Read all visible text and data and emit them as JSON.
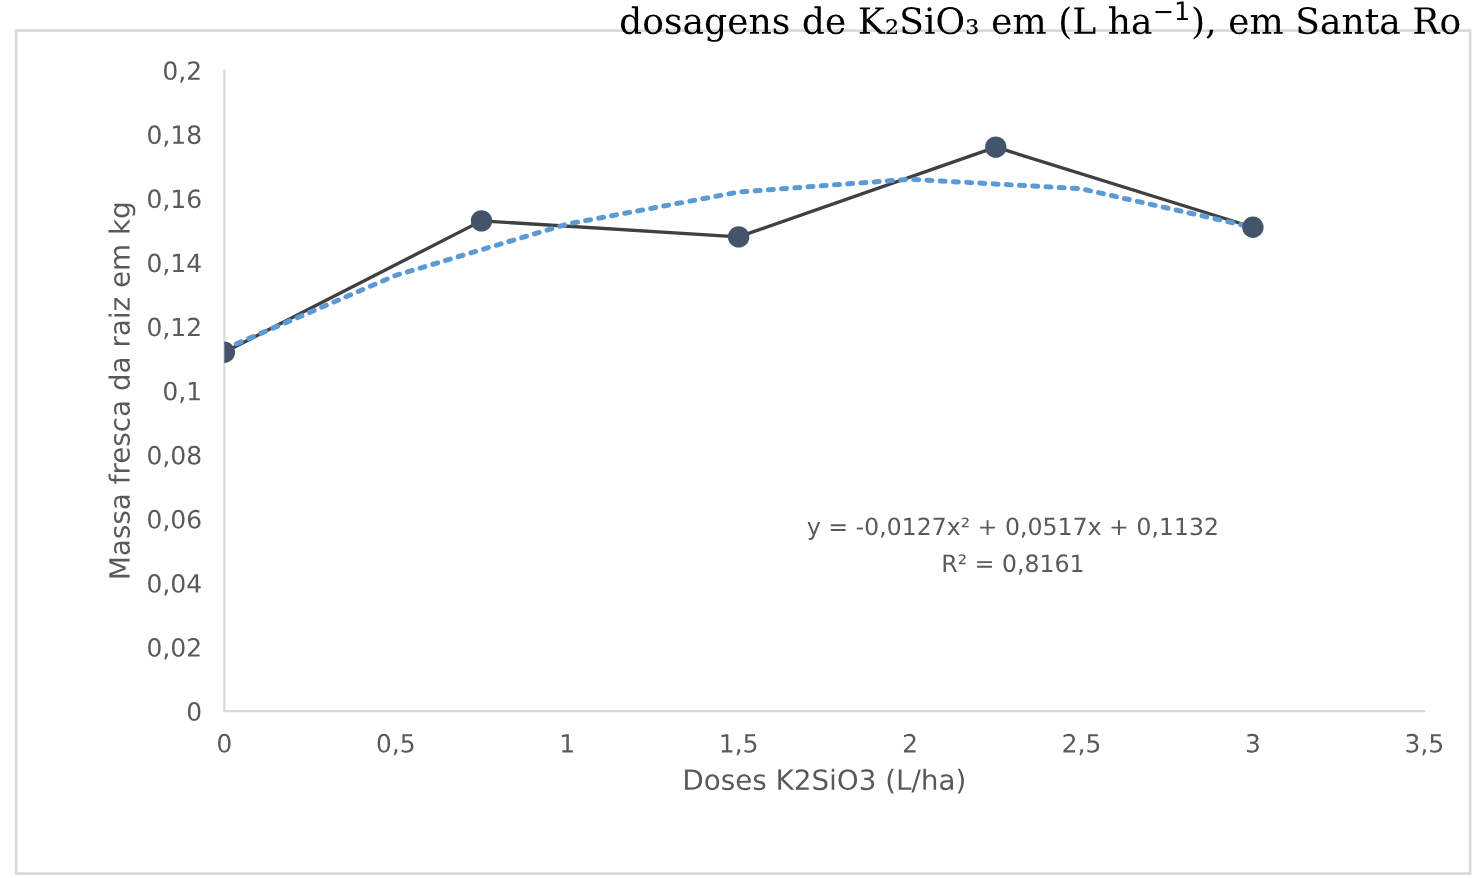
{
  "chart_data": {
    "type": "line",
    "title": "dosagens de K₂SiO₃ em (L ha$^{−1}$), em Santa Ro",
    "xlabel": "Doses K2SiO3 (L/ha)",
    "ylabel": "Massa fresca da raiz em kg",
    "series": [
      {
        "color": "#44546a",
        "marker": "circle",
        "line_style": "solid",
        "x": [
          0,
          0.75,
          1.5,
          2.25,
          3
        ],
        "values": [
          0.112,
          0.153,
          0.148,
          0.176,
          0.151
        ]
      },
      {
        "color": "#5b9bd5",
        "marker": "none",
        "line_style": "dotted",
        "x": [
          0,
          0.5,
          1,
          1.5,
          2,
          2.5,
          3
        ],
        "values": [
          0.113,
          0.136,
          0.152,
          0.162,
          0.166,
          0.163,
          0.151
        ]
      }
    ],
    "annotations": [
      "y = -0,0127x² + 0,0517x + 0,1132",
      "R² = 0,8161"
    ],
    "xlim": [
      0,
      3.5
    ],
    "ylim": [
      0,
      0.2
    ],
    "xticks": [
      0,
      {
        "value": 0.5,
        "label": "0,5"
      },
      1,
      {
        "value": 1.5,
        "label": "1,5"
      },
      2,
      {
        "value": 2.5,
        "label": "2,5"
      },
      3,
      {
        "value": 3.5,
        "label": "3,5"
      }
    ],
    "yticks": [
      0,
      {
        "value": 0.02,
        "label": "0,02"
      },
      {
        "value": 0.04,
        "label": "0,04"
      },
      {
        "value": 0.06,
        "label": "0,06"
      },
      {
        "value": 0.08,
        "label": "0,08"
      },
      {
        "value": 0.1,
        "label": "0,1"
      },
      {
        "value": 0.12,
        "label": "0,12"
      },
      {
        "value": 0.14,
        "label": "0,14"
      },
      {
        "value": 0.16,
        "label": "0,16"
      },
      {
        "value": 0.18,
        "label": "0,18"
      },
      {
        "value": 0.2,
        "label": "0,2"
      }
    ],
    "grid": false,
    "legend": false
  }
}
